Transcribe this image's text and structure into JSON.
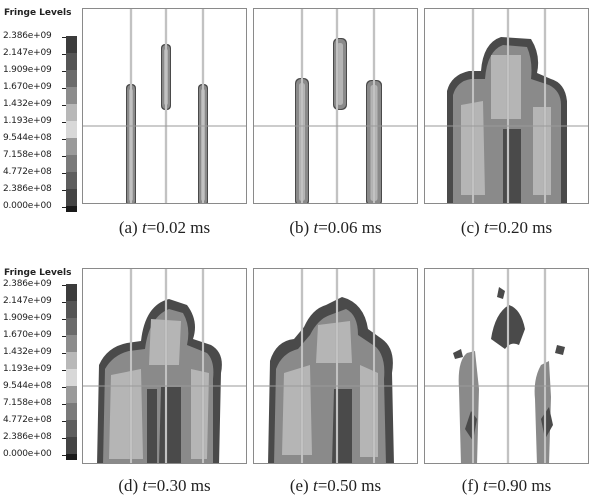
{
  "legend": {
    "title": "Fringe Levels",
    "labels": [
      "2.386e+09",
      "2.147e+09",
      "1.909e+09",
      "1.670e+09",
      "1.432e+09",
      "1.193e+09",
      "9.544e+08",
      "7.158e+08",
      "4.772e+08",
      "2.386e+08",
      "0.000e+00"
    ],
    "colors": [
      "#3c3c3c",
      "#555555",
      "#6b6b6b",
      "#8c8c8c",
      "#b8b8b8",
      "#d8d8d8",
      "#9a9a9a",
      "#7a7a7a",
      "#5e5e5e",
      "#444444",
      "#1a1a1a"
    ]
  },
  "captions": [
    {
      "prefix": "(a) ",
      "var": "t",
      "value": "=0.02 ms"
    },
    {
      "prefix": "(b) ",
      "var": "t",
      "value": "=0.06 ms"
    },
    {
      "prefix": "(c) ",
      "var": "t",
      "value": "=0.20 ms"
    },
    {
      "prefix": "(d) ",
      "var": "t",
      "value": "=0.30 ms"
    },
    {
      "prefix": "(e) ",
      "var": "t",
      "value": "=0.50 ms"
    },
    {
      "prefix": "(f) ",
      "var": "t",
      "value": "=0.90 ms"
    }
  ],
  "colors": {
    "frame": "#8a8a8a",
    "damage_dark": "#4a4a4a",
    "damage_mid": "#8a8a8a",
    "damage_light": "#b5b5b5"
  }
}
